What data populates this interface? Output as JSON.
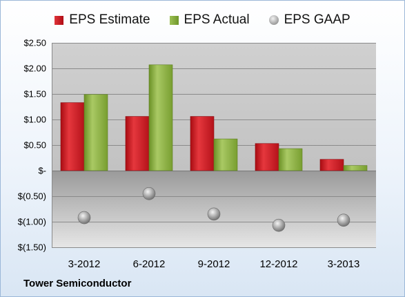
{
  "chart_data": {
    "type": "bar",
    "title": "",
    "xlabel": "",
    "ylabel": "",
    "categories": [
      "3-2012",
      "6-2012",
      "9-2012",
      "12-2012",
      "3-2013"
    ],
    "series": [
      {
        "name": "EPS Estimate",
        "type": "bar",
        "color": "#c8141c",
        "values": [
          1.33,
          1.06,
          1.06,
          0.53,
          0.22
        ]
      },
      {
        "name": "EPS Actual",
        "type": "bar",
        "color": "#8db04a",
        "values": [
          1.49,
          2.07,
          0.62,
          0.43,
          0.1
        ]
      },
      {
        "name": "EPS GAAP",
        "type": "scatter",
        "color": "#9a9a9a",
        "values": [
          -0.92,
          -0.45,
          -0.85,
          -1.07,
          -0.97
        ]
      }
    ],
    "ylim": [
      -1.5,
      2.5
    ],
    "y_ticks": [
      2.5,
      2.0,
      1.5,
      1.0,
      0.5,
      0,
      -0.5,
      -1.0,
      -1.5
    ],
    "y_tick_labels": [
      "$2.50",
      "$2.00",
      "$1.50",
      "$1.00",
      "$0.50",
      "$-",
      "$(0.50)",
      "$(1.00)",
      "$(1.50)"
    ],
    "grid": true,
    "legend_position": "top"
  },
  "legend": {
    "estimate": "EPS Estimate",
    "actual": "EPS Actual",
    "gaap": "EPS GAAP"
  },
  "footer": {
    "company": "Tower Semiconductor"
  }
}
